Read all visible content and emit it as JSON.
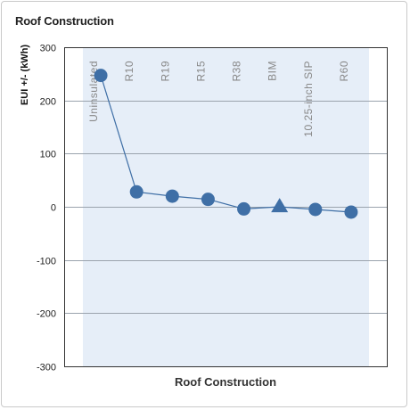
{
  "panel": {
    "title": "Roof Construction"
  },
  "chart_data": {
    "type": "line",
    "title": "",
    "xlabel": "Roof Construction",
    "ylabel": "EUI +/- (kWh)",
    "ylim": [
      -300,
      300
    ],
    "yticks": [
      300,
      200,
      100,
      0,
      -100,
      -200,
      -300
    ],
    "grid": true,
    "categories": [
      "Uninsulated",
      "R10",
      "R19",
      "R15",
      "R38",
      "BIM",
      "10.25-inch SIP",
      "R60"
    ],
    "series": [
      {
        "values": [
          247,
          28,
          20,
          14,
          -4,
          0,
          -5,
          -10
        ],
        "markers": [
          "circle",
          "circle",
          "circle",
          "circle",
          "circle",
          "triangle",
          "circle",
          "circle"
        ],
        "color": "#3f6fa6"
      }
    ],
    "plot_background": "#e6eef8",
    "highlight_category": "BIM"
  }
}
